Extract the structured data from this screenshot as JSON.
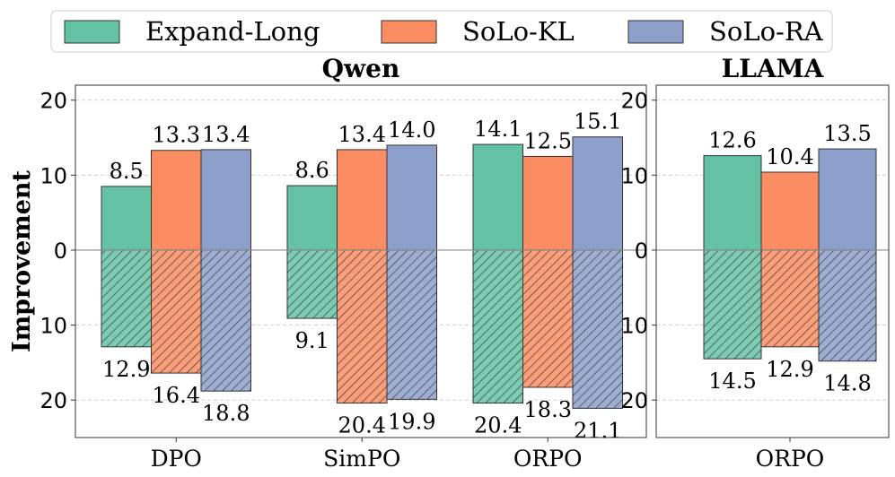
{
  "chart_data": {
    "type": "bar",
    "ylabel": "Improvement",
    "legend": [
      "Expand-Long",
      "SoLo-KL",
      "SoLo-RA"
    ],
    "legend_position": "top-center",
    "colors": [
      "#66c2a5",
      "#fc8d62",
      "#8da0cb"
    ],
    "ylim": [
      -25,
      22
    ],
    "yticks": [
      20,
      10,
      0,
      10,
      20
    ],
    "ytick_values": [
      20,
      10,
      0,
      -10,
      -20
    ],
    "grid": true,
    "panels": [
      {
        "title": "Qwen",
        "categories": [
          "DPO",
          "SimPO",
          "ORPO"
        ],
        "series": [
          {
            "name": "Expand-Long",
            "positive": [
              8.5,
              8.6,
              14.1
            ],
            "negative": [
              12.9,
              9.1,
              20.4
            ]
          },
          {
            "name": "SoLo-KL",
            "positive": [
              13.3,
              13.4,
              12.5
            ],
            "negative": [
              16.4,
              20.4,
              18.3
            ]
          },
          {
            "name": "SoLo-RA",
            "positive": [
              13.4,
              14.0,
              15.1
            ],
            "negative": [
              18.8,
              19.9,
              21.1
            ]
          }
        ]
      },
      {
        "title": "LLAMA",
        "categories": [
          "ORPO"
        ],
        "series": [
          {
            "name": "Expand-Long",
            "positive": [
              12.6
            ],
            "negative": [
              14.5
            ]
          },
          {
            "name": "SoLo-KL",
            "positive": [
              10.4
            ],
            "negative": [
              12.9
            ]
          },
          {
            "name": "SoLo-RA",
            "positive": [
              13.5
            ],
            "negative": [
              14.8
            ]
          }
        ]
      }
    ]
  }
}
